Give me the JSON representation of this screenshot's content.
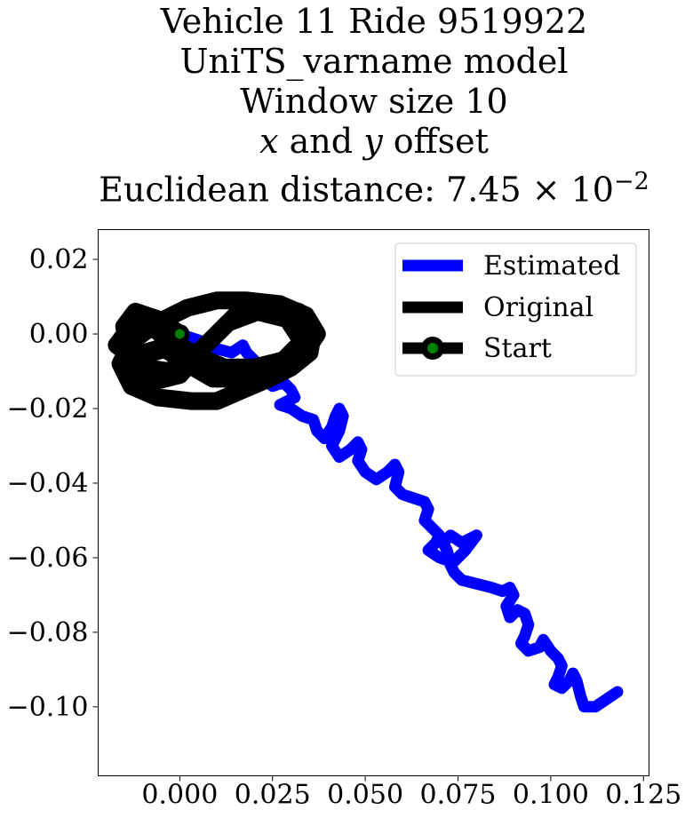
{
  "chart_data": {
    "type": "line",
    "title_lines": [
      "Vehicle 11 Ride 9519922",
      "UniTS_varname model",
      "Window size 10",
      "x and y offset",
      "Euclidean distance: 7.45 × 10−2"
    ],
    "title_parts": {
      "line4": {
        "x": "x",
        "mid": " and ",
        "y": "y",
        "rest": " offset"
      },
      "line5": {
        "text": "Euclidean distance: 7.45 × 10",
        "exp": "−2"
      }
    },
    "xlabel": "",
    "ylabel": "",
    "xlim": [
      -0.022,
      0.1265
    ],
    "ylim": [
      -0.1185,
      0.028
    ],
    "xticks": [
      0.0,
      0.025,
      0.05,
      0.075,
      0.1,
      0.125
    ],
    "xtick_labels": [
      "0.000",
      "0.025",
      "0.050",
      "0.075",
      "0.100",
      "0.125"
    ],
    "yticks": [
      0.02,
      0.0,
      -0.02,
      -0.04,
      -0.06,
      -0.08,
      -0.1
    ],
    "ytick_labels": [
      "0.02",
      "0.00",
      "−0.02",
      "−0.04",
      "−0.06",
      "−0.08",
      "−0.10"
    ],
    "grid": false,
    "legend_position": "top-right",
    "series": [
      {
        "name": "Estimated",
        "color": "#0000ff",
        "points": [
          [
            0.0,
            0.0
          ],
          [
            0.006,
            -0.002
          ],
          [
            0.01,
            -0.004
          ],
          [
            0.014,
            -0.005
          ],
          [
            0.017,
            -0.003
          ],
          [
            0.018,
            -0.005
          ],
          [
            0.02,
            -0.007
          ],
          [
            0.022,
            -0.01
          ],
          [
            0.025,
            -0.014
          ],
          [
            0.028,
            -0.013
          ],
          [
            0.03,
            -0.015
          ],
          [
            0.031,
            -0.017
          ],
          [
            0.029,
            -0.018
          ],
          [
            0.027,
            -0.019
          ],
          [
            0.03,
            -0.02
          ],
          [
            0.033,
            -0.022
          ],
          [
            0.036,
            -0.023
          ],
          [
            0.037,
            -0.026
          ],
          [
            0.039,
            -0.028
          ],
          [
            0.041,
            -0.025
          ],
          [
            0.042,
            -0.022
          ],
          [
            0.043,
            -0.02
          ],
          [
            0.044,
            -0.022
          ],
          [
            0.043,
            -0.026
          ],
          [
            0.041,
            -0.03
          ],
          [
            0.043,
            -0.033
          ],
          [
            0.046,
            -0.031
          ],
          [
            0.048,
            -0.029
          ],
          [
            0.049,
            -0.031
          ],
          [
            0.048,
            -0.034
          ],
          [
            0.05,
            -0.037
          ],
          [
            0.053,
            -0.039
          ],
          [
            0.056,
            -0.037
          ],
          [
            0.058,
            -0.035
          ],
          [
            0.059,
            -0.037
          ],
          [
            0.058,
            -0.041
          ],
          [
            0.06,
            -0.043
          ],
          [
            0.063,
            -0.044
          ],
          [
            0.066,
            -0.045
          ],
          [
            0.067,
            -0.047
          ],
          [
            0.066,
            -0.05
          ],
          [
            0.068,
            -0.052
          ],
          [
            0.07,
            -0.054
          ],
          [
            0.069,
            -0.056
          ],
          [
            0.067,
            -0.058
          ],
          [
            0.07,
            -0.06
          ],
          [
            0.073,
            -0.061
          ],
          [
            0.072,
            -0.058
          ],
          [
            0.071,
            -0.056
          ],
          [
            0.073,
            -0.054
          ],
          [
            0.076,
            -0.056
          ],
          [
            0.078,
            -0.055
          ],
          [
            0.08,
            -0.054
          ],
          [
            0.077,
            -0.058
          ],
          [
            0.073,
            -0.062
          ],
          [
            0.074,
            -0.064
          ],
          [
            0.076,
            -0.066
          ],
          [
            0.08,
            -0.067
          ],
          [
            0.084,
            -0.068
          ],
          [
            0.087,
            -0.069
          ],
          [
            0.089,
            -0.068
          ],
          [
            0.09,
            -0.07
          ],
          [
            0.088,
            -0.073
          ],
          [
            0.089,
            -0.076
          ],
          [
            0.091,
            -0.074
          ],
          [
            0.093,
            -0.075
          ],
          [
            0.094,
            -0.078
          ],
          [
            0.093,
            -0.081
          ],
          [
            0.092,
            -0.083
          ],
          [
            0.094,
            -0.085
          ],
          [
            0.097,
            -0.084
          ],
          [
            0.098,
            -0.082
          ],
          [
            0.1,
            -0.085
          ],
          [
            0.102,
            -0.087
          ],
          [
            0.103,
            -0.089
          ],
          [
            0.102,
            -0.092
          ],
          [
            0.101,
            -0.094
          ],
          [
            0.103,
            -0.095
          ],
          [
            0.105,
            -0.093
          ],
          [
            0.106,
            -0.091
          ],
          [
            0.107,
            -0.093
          ],
          [
            0.108,
            -0.097
          ],
          [
            0.109,
            -0.1
          ],
          [
            0.112,
            -0.1
          ],
          [
            0.115,
            -0.098
          ],
          [
            0.118,
            -0.096
          ]
        ]
      },
      {
        "name": "Original",
        "color": "#000000",
        "points": [
          [
            0.0,
            0.0
          ],
          [
            -0.006,
            0.004
          ],
          [
            -0.012,
            0.006
          ],
          [
            -0.015,
            0.002
          ],
          [
            -0.014,
            -0.004
          ],
          [
            -0.01,
            -0.009
          ],
          [
            -0.003,
            -0.01
          ],
          [
            0.004,
            -0.006
          ],
          [
            0.01,
            0.0
          ],
          [
            0.016,
            0.006
          ],
          [
            0.024,
            0.008
          ],
          [
            0.032,
            0.006
          ],
          [
            0.036,
            0.001
          ],
          [
            0.035,
            -0.005
          ],
          [
            0.03,
            -0.009
          ],
          [
            0.024,
            -0.012
          ],
          [
            0.017,
            -0.015
          ],
          [
            0.01,
            -0.018
          ],
          [
            0.003,
            -0.018
          ],
          [
            -0.006,
            -0.017
          ],
          [
            -0.013,
            -0.014
          ],
          [
            -0.016,
            -0.008
          ],
          [
            -0.013,
            -0.002
          ],
          [
            -0.006,
            0.003
          ],
          [
            0.002,
            0.007
          ],
          [
            0.01,
            0.009
          ],
          [
            0.018,
            0.009
          ],
          [
            0.027,
            0.008
          ],
          [
            0.034,
            0.005
          ],
          [
            0.037,
            0.0
          ],
          [
            0.033,
            -0.006
          ],
          [
            0.026,
            -0.01
          ],
          [
            0.018,
            -0.012
          ],
          [
            0.009,
            -0.012
          ],
          [
            0.002,
            -0.008
          ],
          [
            -0.004,
            -0.004
          ],
          [
            -0.011,
            -0.006
          ],
          [
            -0.014,
            -0.01
          ],
          [
            -0.008,
            -0.013
          ],
          [
            0.0,
            -0.011
          ],
          [
            0.006,
            -0.004
          ],
          [
            0.013,
            0.003
          ],
          [
            0.021,
            0.006
          ],
          [
            0.029,
            0.004
          ],
          [
            0.033,
            -0.002
          ],
          [
            0.028,
            -0.007
          ],
          [
            0.02,
            -0.009
          ],
          [
            0.012,
            -0.009
          ],
          [
            0.005,
            -0.006
          ],
          [
            -0.002,
            -0.002
          ],
          [
            -0.008,
            0.002
          ],
          [
            -0.014,
            0.001
          ],
          [
            -0.017,
            -0.003
          ],
          [
            -0.013,
            -0.006
          ],
          [
            -0.006,
            -0.004
          ],
          [
            0.0,
            0.0
          ]
        ]
      },
      {
        "name": "Start",
        "color": "#008000",
        "points": [
          [
            0.0,
            0.0
          ]
        ]
      }
    ]
  }
}
